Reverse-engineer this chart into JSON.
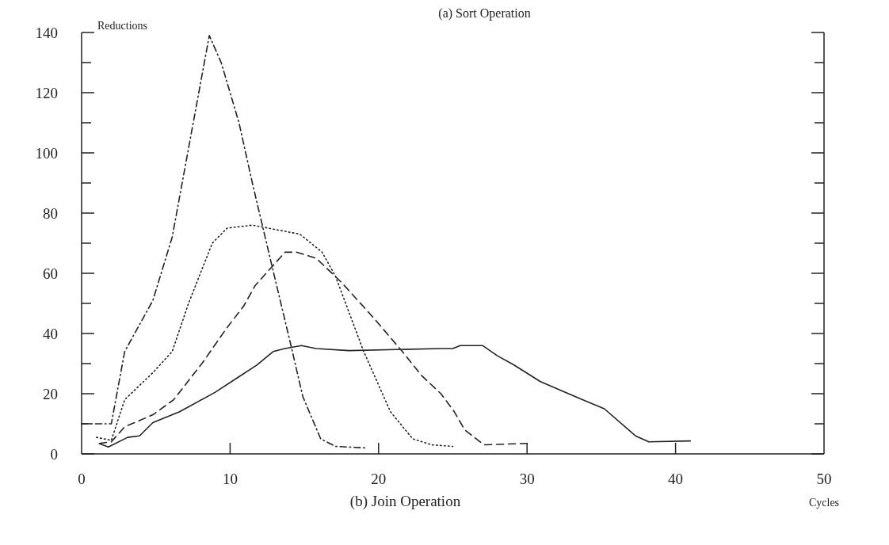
{
  "chart_data": {
    "type": "line",
    "title": "(b) Join Operation",
    "xlabel": "Cycles",
    "ylabel": "Reductions",
    "annotations": [
      "(a) Sort Operation"
    ],
    "xlim": [
      0,
      50
    ],
    "xticks": [
      0,
      10,
      20,
      30,
      40,
      50
    ],
    "ylim": [
      0,
      140
    ],
    "yticks": [
      0,
      {
        "value": 10,
        "label": null
      },
      20,
      {
        "value": 30,
        "label": null
      },
      40,
      {
        "value": 50,
        "label": null
      },
      60,
      {
        "value": 70,
        "label": null
      },
      80,
      {
        "value": 90,
        "label": null
      },
      100,
      {
        "value": 110,
        "label": null
      },
      120,
      {
        "value": 130,
        "label": null
      },
      140
    ],
    "grid": false,
    "marker": "none",
    "series": [
      {
        "color": "#222222",
        "line_style": "dashdot",
        "x": [
          0,
          2,
          2.9,
          4.8,
          6.1,
          8.6,
          9.4,
          10.6,
          11.5,
          12.6,
          14.1,
          14.9,
          16.1,
          17.1,
          19.1
        ],
        "values": [
          10,
          10,
          34,
          51,
          72,
          139,
          130,
          110,
          90,
          67,
          36,
          19,
          5,
          2.5,
          2
        ]
      },
      {
        "color": "#222222",
        "line_style": "dotted",
        "x": [
          1,
          2,
          2.9,
          4.8,
          6.1,
          7.2,
          8.8,
          9.8,
          11.5,
          14.7,
          16.2,
          17.1,
          19,
          20.8,
          22.3,
          23.6,
          25
        ],
        "values": [
          5.5,
          4.5,
          18,
          27,
          34,
          50,
          70,
          75,
          76,
          73,
          67,
          59,
          34,
          14,
          5,
          3,
          2.5
        ]
      },
      {
        "color": "#222222",
        "line_style": "dashed",
        "x": [
          1.2,
          2,
          2.9,
          4.8,
          6.2,
          8.1,
          9.8,
          10.9,
          11.7,
          13.7,
          14.5,
          15.8,
          17.5,
          19.7,
          21.6,
          22.9,
          24.2,
          25.1,
          25.8,
          27.1,
          30
        ],
        "values": [
          3.5,
          4,
          9,
          13,
          18,
          30,
          42,
          49,
          56,
          67,
          67,
          65,
          57,
          45,
          34,
          26,
          20,
          14,
          8,
          3,
          3.5
        ]
      },
      {
        "color": "#222222",
        "line_style": "solid",
        "x": [
          1.2,
          1.8,
          3.1,
          3.9,
          4.8,
          6.6,
          9,
          10.4,
          11.8,
          12.9,
          13.7,
          14.8,
          15.8,
          18,
          24.2,
          25,
          25.5,
          27,
          28,
          29.1,
          30.9,
          33.6,
          35.2,
          37.3,
          38.2,
          41
        ],
        "values": [
          3.4,
          2.3,
          5.5,
          6,
          10.4,
          14,
          20.5,
          25,
          29.5,
          34,
          35,
          36,
          35,
          34.3,
          35,
          35,
          36,
          36,
          32.6,
          29.6,
          24,
          18.3,
          15,
          6,
          4,
          4.3
        ]
      }
    ]
  }
}
